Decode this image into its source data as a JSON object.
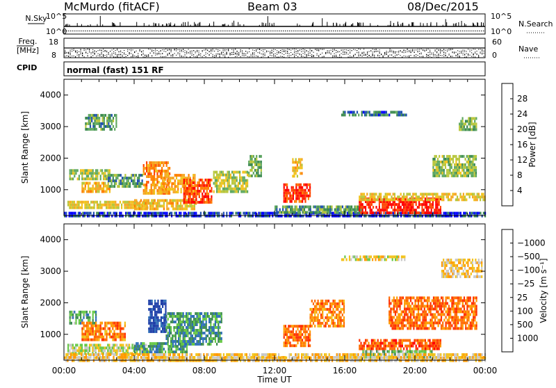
{
  "header": {
    "station": "McMurdo (fitACF)",
    "beam": "Beam 03",
    "date": "08/Dec/2015"
  },
  "status_panels": {
    "nsky_label": "N.Sky",
    "nsky_ticks": [
      "10^5",
      "10^0"
    ],
    "nsearch_label": "N.Search",
    "freq_label_line1": "Freq.",
    "freq_label_line2": "[MHz]",
    "freq_ticks": [
      "18",
      "8"
    ],
    "nave_label": "Nave",
    "nave_ticks": [
      "60",
      "0"
    ],
    "cpid_label": "CPID",
    "cpid_text": "normal (fast) 151 RF"
  },
  "chart_data": [
    {
      "type": "heatmap",
      "name": "power",
      "xlabel": "Time UT",
      "ylabel": "Slant Range [km]",
      "x_range_hours": [
        0,
        24
      ],
      "x_tick_labels": [
        "00:00",
        "04:00",
        "08:00",
        "12:00",
        "16:00",
        "20:00",
        "00:00"
      ],
      "ylim": [
        180,
        4500
      ],
      "y_ticks": [
        1000,
        2000,
        3000,
        4000
      ],
      "colorbar": {
        "label": "Power [dB]",
        "ticks": [
          "4",
          "8",
          "12",
          "16",
          "20",
          "24",
          "28"
        ],
        "colors": [
          "#0000ff",
          "#1e4fb0",
          "#3c8a50",
          "#5fa860",
          "#b7c63b",
          "#f2c21a",
          "#f5a623",
          "#ff7f00",
          "#ff4400",
          "#ff0000"
        ]
      },
      "regions": [
        {
          "t0": 0.0,
          "t1": 24.0,
          "r0": 180,
          "r1": 300,
          "level": 0.1
        },
        {
          "t0": 0.2,
          "t1": 4.8,
          "r0": 400,
          "r1": 650,
          "level": 0.55
        },
        {
          "t0": 0.3,
          "t1": 2.6,
          "r0": 1300,
          "r1": 1650,
          "level": 0.45
        },
        {
          "t0": 1.0,
          "t1": 2.6,
          "r0": 950,
          "r1": 1250,
          "level": 0.6
        },
        {
          "t0": 2.5,
          "t1": 4.5,
          "r0": 1100,
          "r1": 1500,
          "level": 0.3
        },
        {
          "t0": 4.0,
          "t1": 7.5,
          "r0": 400,
          "r1": 700,
          "level": 0.6
        },
        {
          "t0": 4.5,
          "t1": 6.0,
          "r0": 900,
          "r1": 1900,
          "level": 0.7
        },
        {
          "t0": 5.5,
          "t1": 7.5,
          "r0": 900,
          "r1": 1500,
          "level": 0.65
        },
        {
          "t0": 6.8,
          "t1": 8.4,
          "r0": 600,
          "r1": 1350,
          "level": 0.85
        },
        {
          "t0": 8.5,
          "t1": 10.5,
          "r0": 900,
          "r1": 1600,
          "level": 0.45
        },
        {
          "t0": 10.5,
          "t1": 11.2,
          "r0": 1400,
          "r1": 2100,
          "level": 0.35
        },
        {
          "t0": 12.5,
          "t1": 14.0,
          "r0": 650,
          "r1": 1200,
          "level": 0.9
        },
        {
          "t0": 13.0,
          "t1": 13.6,
          "r0": 1400,
          "r1": 2000,
          "level": 0.6
        },
        {
          "t0": 12.0,
          "t1": 17.0,
          "r0": 300,
          "r1": 500,
          "level": 0.3
        },
        {
          "t0": 16.8,
          "t1": 21.5,
          "r0": 250,
          "r1": 750,
          "level": 0.95
        },
        {
          "t0": 16.8,
          "t1": 24.0,
          "r0": 700,
          "r1": 900,
          "level": 0.55
        },
        {
          "t0": 15.8,
          "t1": 19.5,
          "r0": 3350,
          "r1": 3500,
          "level": 0.2
        },
        {
          "t0": 1.2,
          "t1": 3.0,
          "r0": 2900,
          "r1": 3400,
          "level": 0.3
        },
        {
          "t0": 21.0,
          "t1": 23.5,
          "r0": 1400,
          "r1": 2100,
          "level": 0.4
        },
        {
          "t0": 22.5,
          "t1": 23.5,
          "r0": 2900,
          "r1": 3300,
          "level": 0.35
        }
      ]
    },
    {
      "type": "heatmap",
      "name": "velocity",
      "xlabel": "Time UT",
      "ylabel": "Slant Range [km]",
      "x_range_hours": [
        0,
        24
      ],
      "x_tick_labels": [
        "00:00",
        "04:00",
        "08:00",
        "12:00",
        "16:00",
        "20:00",
        "00:00"
      ],
      "ylim": [
        180,
        4500
      ],
      "y_ticks": [
        1000,
        2000,
        3000,
        4000
      ],
      "colorbar": {
        "label": "Velocity [m s⁻¹]",
        "ticks": [
          "1000",
          "500",
          "100",
          "25",
          "−25",
          "−100",
          "−500",
          "−1000"
        ],
        "colors": [
          "#1e3fa8",
          "#2e6fb8",
          "#3c8a50",
          "#66c845",
          "#c8c8c8",
          "#f2c21a",
          "#ff9a00",
          "#ff6a00",
          "#ff3000",
          "#ff0000"
        ]
      },
      "regions": [
        {
          "t0": 0.0,
          "t1": 24.0,
          "r0": 180,
          "r1": 300,
          "level": 0.55
        },
        {
          "t0": 0.2,
          "t1": 4.8,
          "r0": 350,
          "r1": 700,
          "level": 0.45
        },
        {
          "t0": 0.3,
          "t1": 1.8,
          "r0": 1350,
          "r1": 1750,
          "level": 0.3
        },
        {
          "t0": 1.0,
          "t1": 3.5,
          "r0": 850,
          "r1": 1400,
          "level": 0.7
        },
        {
          "t0": 4.0,
          "t1": 7.0,
          "r0": 450,
          "r1": 750,
          "level": 0.25
        },
        {
          "t0": 4.8,
          "t1": 5.8,
          "r0": 1100,
          "r1": 2100,
          "level": 0.05
        },
        {
          "t0": 5.8,
          "t1": 9.0,
          "r0": 700,
          "r1": 1700,
          "level": 0.25
        },
        {
          "t0": 12.5,
          "t1": 14.0,
          "r0": 600,
          "r1": 1300,
          "level": 0.75
        },
        {
          "t0": 14.0,
          "t1": 16.0,
          "r0": 1300,
          "r1": 2100,
          "level": 0.7
        },
        {
          "t0": 15.8,
          "t1": 19.5,
          "r0": 3350,
          "r1": 3500,
          "level": 0.5
        },
        {
          "t0": 16.8,
          "t1": 21.5,
          "r0": 500,
          "r1": 850,
          "level": 0.8
        },
        {
          "t0": 17.0,
          "t1": 21.0,
          "r0": 250,
          "r1": 500,
          "level": 0.35
        },
        {
          "t0": 18.5,
          "t1": 23.5,
          "r0": 1200,
          "r1": 2200,
          "level": 0.75
        },
        {
          "t0": 21.5,
          "t1": 23.8,
          "r0": 2800,
          "r1": 3400,
          "level": 0.55
        },
        {
          "t0": 0.0,
          "t1": 24.0,
          "r0": 300,
          "r1": 400,
          "level": 0.55
        }
      ]
    }
  ]
}
